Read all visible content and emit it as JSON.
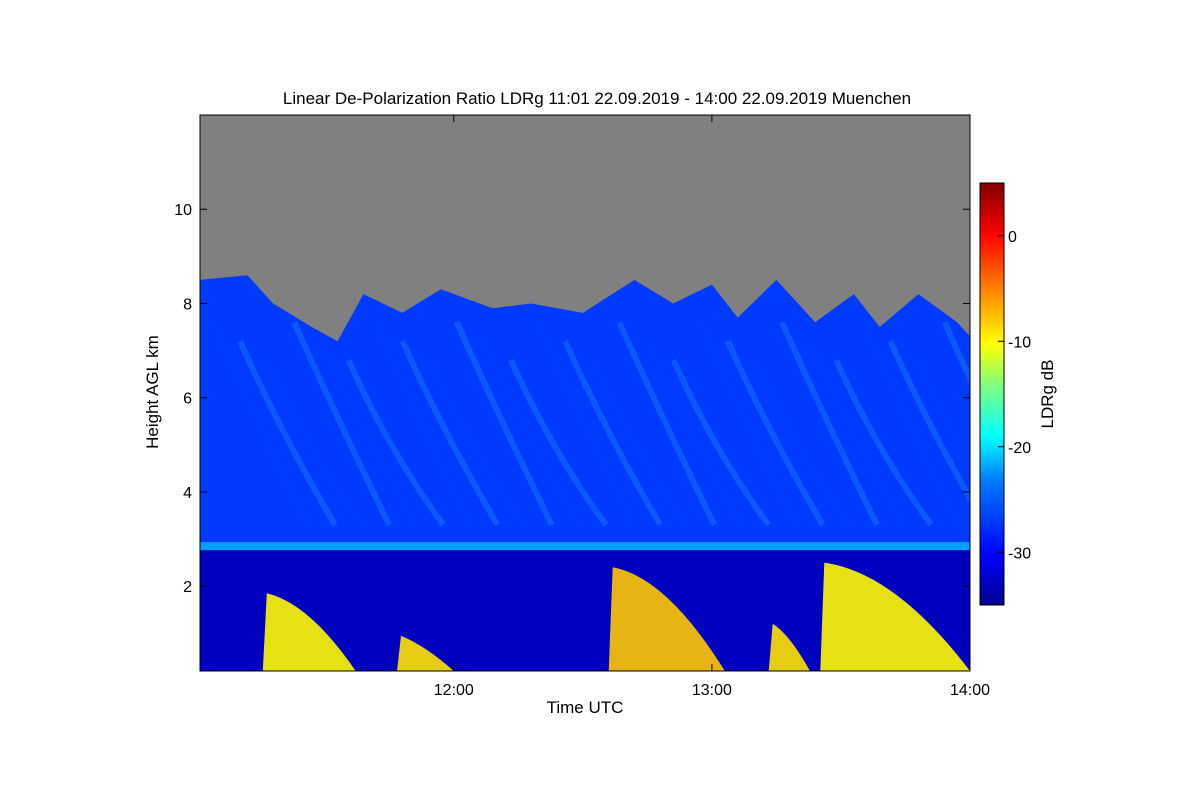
{
  "chart_data": {
    "type": "heatmap",
    "title": "Linear De-Polarization Ratio LDRg   11:01 22.09.2019 - 14:00 22.09.2019 Muenchen",
    "xlabel": "Time UTC",
    "ylabel": "Height AGL km",
    "colorbar_label": "LDRg dB",
    "x_ticks": [
      {
        "value": 12.0,
        "label": "12:00"
      },
      {
        "value": 13.0,
        "label": "13:00"
      },
      {
        "value": 14.0,
        "label": "14:00"
      }
    ],
    "y_ticks": [
      {
        "value": 2,
        "label": "2"
      },
      {
        "value": 4,
        "label": "4"
      },
      {
        "value": 6,
        "label": "6"
      },
      {
        "value": 8,
        "label": "8"
      },
      {
        "value": 10,
        "label": "10"
      }
    ],
    "colorbar_ticks": [
      {
        "value": 0,
        "label": "0"
      },
      {
        "value": -10,
        "label": "-10"
      },
      {
        "value": -20,
        "label": "-20"
      },
      {
        "value": -30,
        "label": "-30"
      }
    ],
    "xlim": [
      11.0167,
      14.0
    ],
    "ylim": [
      0.2,
      12.0
    ],
    "clim": [
      -35,
      5
    ],
    "no_data_color": "#808080",
    "colormap": [
      "#00008f",
      "#0000ff",
      "#0080ff",
      "#00ffff",
      "#80ff80",
      "#ffff00",
      "#ff8000",
      "#ff0000",
      "#800000"
    ],
    "features": {
      "cloud_top_km": [
        [
          11.0167,
          8.5
        ],
        [
          11.2,
          8.6
        ],
        [
          11.3,
          8.0
        ],
        [
          11.45,
          7.5
        ],
        [
          11.55,
          7.2
        ],
        [
          11.65,
          8.2
        ],
        [
          11.8,
          7.8
        ],
        [
          11.95,
          8.3
        ],
        [
          12.15,
          7.9
        ],
        [
          12.3,
          8.0
        ],
        [
          12.5,
          7.8
        ],
        [
          12.7,
          8.5
        ],
        [
          12.85,
          8.0
        ],
        [
          13.0,
          8.4
        ],
        [
          13.1,
          7.7
        ],
        [
          13.25,
          8.5
        ],
        [
          13.4,
          7.6
        ],
        [
          13.55,
          8.2
        ],
        [
          13.65,
          7.5
        ],
        [
          13.8,
          8.2
        ],
        [
          13.95,
          7.6
        ],
        [
          14.0,
          7.3
        ]
      ],
      "melting_layer": {
        "height_km": 2.85,
        "ldr_db": -22
      },
      "ice_cloud_ldr_db": -27,
      "lower_layer_ldr_db": -33,
      "boundary_layer_echoes": [
        {
          "t0": 11.26,
          "t1": 11.62,
          "top_km": 1.85,
          "ldr_db": -10
        },
        {
          "t0": 11.78,
          "t1": 12.0,
          "top_km": 0.95,
          "ldr_db": -9
        },
        {
          "t0": 12.6,
          "t1": 13.05,
          "top_km": 2.4,
          "ldr_db": -8
        },
        {
          "t0": 13.22,
          "t1": 13.38,
          "top_km": 1.2,
          "ldr_db": -9
        },
        {
          "t0": 13.42,
          "t1": 14.0,
          "top_km": 2.5,
          "ldr_db": -10
        }
      ]
    }
  }
}
